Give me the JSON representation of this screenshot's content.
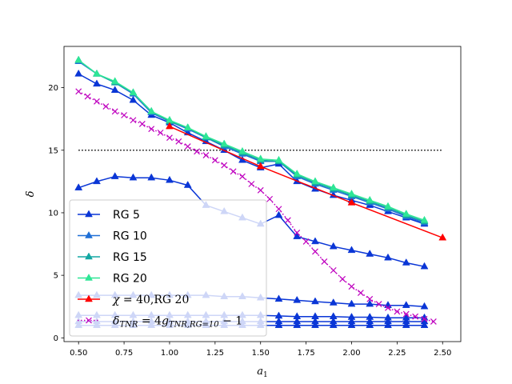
{
  "chart_data": {
    "type": "line",
    "title": "",
    "xlabel": "a",
    "xlabel_sub": "1",
    "ylabel": "δ",
    "xlim": [
      0.42,
      2.6
    ],
    "ylim": [
      -0.3,
      23.3
    ],
    "x_ticks": [
      0.5,
      0.75,
      1.0,
      1.25,
      1.5,
      1.75,
      2.0,
      2.25,
      2.5
    ],
    "x_tick_labels": [
      "0.50",
      "0.75",
      "1.00",
      "1.25",
      "1.50",
      "1.75",
      "2.00",
      "2.25",
      "2.50"
    ],
    "y_ticks": [
      0,
      5,
      10,
      15,
      20
    ],
    "y_tick_labels": [
      "0",
      "5",
      "10",
      "15",
      "20"
    ],
    "grid": false,
    "legend_position": "lower-left",
    "hline": {
      "y": 15,
      "color": "#000000",
      "style": "dotted"
    },
    "series": [
      {
        "name": "RG 5",
        "color": "#0a36d6",
        "marker": "triangle",
        "legend": true,
        "x": [
          0.5,
          0.6,
          0.7,
          0.8,
          0.9,
          1.0,
          1.1,
          1.2,
          1.3,
          1.4,
          1.5,
          1.6,
          1.7,
          1.8,
          1.9,
          2.0,
          2.1,
          2.2,
          2.3,
          2.4
        ],
        "y": [
          21.1,
          20.3,
          19.8,
          19.0,
          17.8,
          17.2,
          16.4,
          15.7,
          15.0,
          14.2,
          13.6,
          13.9,
          12.5,
          11.9,
          11.4,
          11.0,
          10.6,
          10.1,
          9.6,
          9.1
        ]
      },
      {
        "name": "RG 5 (branch 2)",
        "color": "#0a36d6",
        "marker": "triangle",
        "legend": false,
        "x": [
          0.5,
          0.6,
          0.7,
          0.8,
          0.9,
          1.0,
          1.1,
          1.2,
          1.3,
          1.4,
          1.5,
          1.6,
          1.7,
          1.8,
          1.9,
          2.0,
          2.1,
          2.2,
          2.3,
          2.4
        ],
        "y": [
          12.0,
          12.5,
          12.9,
          12.8,
          12.8,
          12.6,
          12.2,
          10.6,
          10.1,
          9.6,
          9.1,
          9.8,
          8.1,
          7.7,
          7.3,
          7.0,
          6.7,
          6.4,
          6.0,
          5.7
        ]
      },
      {
        "name": "RG 5 (branch 3)",
        "color": "#0a36d6",
        "marker": "triangle",
        "legend": false,
        "x": [
          0.5,
          0.6,
          0.7,
          0.8,
          0.9,
          1.0,
          1.1,
          1.2,
          1.3,
          1.4,
          1.5,
          1.6,
          1.7,
          1.8,
          1.9,
          2.0,
          2.1,
          2.2,
          2.3,
          2.4
        ],
        "y": [
          3.4,
          3.4,
          3.4,
          3.4,
          3.4,
          3.4,
          3.4,
          3.4,
          3.3,
          3.3,
          3.2,
          3.1,
          3.0,
          2.9,
          2.8,
          2.7,
          2.7,
          2.6,
          2.6,
          2.5
        ]
      },
      {
        "name": "RG 5 (branch 4)",
        "color": "#0a36d6",
        "marker": "triangle",
        "legend": false,
        "x": [
          0.5,
          0.6,
          0.7,
          0.8,
          0.9,
          1.0,
          1.1,
          1.2,
          1.3,
          1.4,
          1.5,
          1.6,
          1.7,
          1.8,
          1.9,
          2.0,
          2.1,
          2.2,
          2.3,
          2.4
        ],
        "y": [
          1.8,
          1.8,
          1.8,
          1.8,
          1.8,
          1.8,
          1.8,
          1.8,
          1.8,
          1.8,
          1.8,
          1.75,
          1.7,
          1.7,
          1.7,
          1.65,
          1.65,
          1.6,
          1.6,
          1.6
        ]
      },
      {
        "name": "RG 5 (branch 5)",
        "color": "#0a36d6",
        "marker": "triangle",
        "legend": false,
        "x": [
          0.5,
          0.6,
          0.7,
          0.8,
          0.9,
          1.0,
          1.1,
          1.2,
          1.3,
          1.4,
          1.5,
          1.6,
          1.7,
          1.8,
          1.9,
          2.0,
          2.1,
          2.2,
          2.3,
          2.4
        ],
        "y": [
          1.3,
          1.3,
          1.3,
          1.3,
          1.3,
          1.3,
          1.3,
          1.3,
          1.3,
          1.3,
          1.3,
          1.3,
          1.3,
          1.3,
          1.3,
          1.3,
          1.3,
          1.3,
          1.3,
          1.3
        ]
      },
      {
        "name": "RG 5 (branch 6)",
        "color": "#0a36d6",
        "marker": "triangle",
        "legend": false,
        "x": [
          0.5,
          0.6,
          0.7,
          0.8,
          0.9,
          1.0,
          1.1,
          1.2,
          1.3,
          1.4,
          1.5,
          1.6,
          1.7,
          1.8,
          1.9,
          2.0,
          2.1,
          2.2,
          2.3,
          2.4
        ],
        "y": [
          1.0,
          1.0,
          1.0,
          1.0,
          1.0,
          1.0,
          1.0,
          1.0,
          1.0,
          1.0,
          1.0,
          1.0,
          1.0,
          1.0,
          1.0,
          1.0,
          1.0,
          1.0,
          1.0,
          1.0
        ]
      },
      {
        "name": "RG 10",
        "color": "#1f6fd6",
        "marker": "triangle",
        "legend": true,
        "x": [
          0.5,
          0.6,
          0.7,
          0.8,
          0.9,
          1.0,
          1.1,
          1.2,
          1.3,
          1.4,
          1.5,
          1.6,
          1.7,
          1.8,
          1.9,
          2.0,
          2.1,
          2.2,
          2.3,
          2.4
        ],
        "y": [
          22.1,
          21.1,
          20.4,
          19.5,
          18.0,
          17.3,
          16.7,
          16.0,
          15.3,
          14.7,
          14.1,
          14.1,
          12.9,
          12.3,
          11.8,
          11.3,
          10.8,
          10.3,
          9.7,
          9.2
        ]
      },
      {
        "name": "RG 15",
        "color": "#13a7a3",
        "marker": "triangle",
        "legend": true,
        "x": [
          0.5,
          0.6,
          0.7,
          0.8,
          0.9,
          1.0,
          1.1,
          1.2,
          1.3,
          1.4,
          1.5,
          1.6,
          1.7,
          1.8,
          1.9,
          2.0,
          2.1,
          2.2,
          2.3,
          2.4
        ],
        "y": [
          22.2,
          21.1,
          20.4,
          19.6,
          18.1,
          17.3,
          16.8,
          16.0,
          15.4,
          14.8,
          14.2,
          14.1,
          13.0,
          12.4,
          11.9,
          11.4,
          10.9,
          10.4,
          9.8,
          9.3
        ]
      },
      {
        "name": "RG 20",
        "color": "#2ee696",
        "marker": "triangle",
        "legend": true,
        "x": [
          0.5,
          0.6,
          0.7,
          0.8,
          0.9,
          1.0,
          1.1,
          1.2,
          1.3,
          1.4,
          1.5,
          1.6,
          1.7,
          1.8,
          1.9,
          2.0,
          2.1,
          2.2,
          2.3,
          2.4
        ],
        "y": [
          22.2,
          21.1,
          20.5,
          19.6,
          18.1,
          17.4,
          16.8,
          16.1,
          15.5,
          14.9,
          14.3,
          14.2,
          13.1,
          12.5,
          12.0,
          11.5,
          11.0,
          10.5,
          9.9,
          9.4
        ]
      },
      {
        "name": "χ=40,RG 20",
        "color": "#ff0000",
        "marker": "triangle",
        "legend": true,
        "x": [
          1.0,
          1.5,
          2.0,
          2.5
        ],
        "y": [
          16.9,
          13.7,
          10.8,
          8.0
        ]
      },
      {
        "name": "δTNR=4gTNR,RG=10−1",
        "color": "#bf00bf",
        "marker": "x",
        "linestyle": "dotted",
        "legend": true,
        "x": [
          0.5,
          0.55,
          0.6,
          0.65,
          0.7,
          0.75,
          0.8,
          0.85,
          0.9,
          0.95,
          1.0,
          1.05,
          1.1,
          1.15,
          1.2,
          1.25,
          1.3,
          1.35,
          1.4,
          1.45,
          1.5,
          1.55,
          1.6,
          1.65,
          1.7,
          1.75,
          1.8,
          1.85,
          1.9,
          1.95,
          2.0,
          2.05,
          2.1,
          2.15,
          2.2,
          2.25,
          2.3,
          2.35,
          2.4,
          2.45
        ],
        "y": [
          19.7,
          19.3,
          18.9,
          18.5,
          18.1,
          17.8,
          17.4,
          17.1,
          16.7,
          16.4,
          16.0,
          15.7,
          15.3,
          14.9,
          14.6,
          14.2,
          13.8,
          13.3,
          12.9,
          12.3,
          11.8,
          11.1,
          10.3,
          9.4,
          8.4,
          7.7,
          6.9,
          6.1,
          5.4,
          4.7,
          4.1,
          3.6,
          3.1,
          2.7,
          2.4,
          2.1,
          1.9,
          1.7,
          1.5,
          1.3
        ]
      }
    ],
    "legend": [
      {
        "label": "RG 5",
        "series": 0
      },
      {
        "label": "RG 10",
        "series": 6
      },
      {
        "label": "RG 15",
        "series": 7
      },
      {
        "label": "RG 20",
        "series": 8
      },
      {
        "label": "χ = 40,RG 20",
        "series": 9
      },
      {
        "label": "δTNR = 4gTNR,RG=10 − 1",
        "series": 10
      }
    ]
  }
}
